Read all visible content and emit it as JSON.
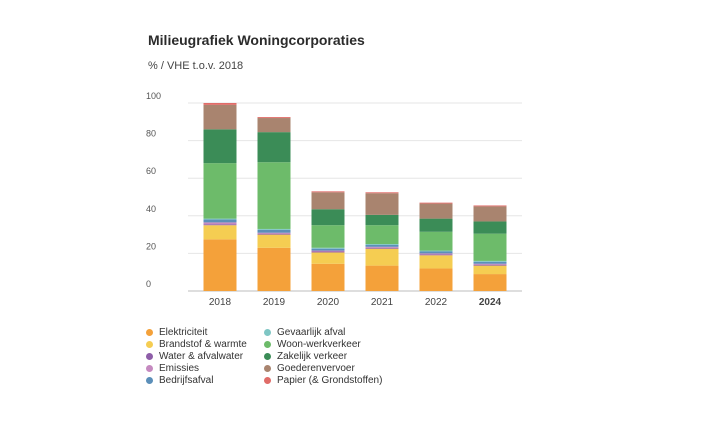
{
  "chart_data": {
    "type": "bar",
    "stacked": true,
    "title": "Milieugrafiek Woningcorporaties",
    "subtitle": "% / VHE t.o.v. 2018",
    "categories": [
      "2018",
      "2019",
      "2020",
      "2021",
      "2022",
      "2024"
    ],
    "highlighted_category": "2024",
    "ylim": [
      0,
      100
    ],
    "yticks": [
      0,
      20,
      40,
      60,
      80,
      100
    ],
    "grid": true,
    "legend_position": "bottom",
    "series": [
      {
        "name": "Elektriciteit",
        "color": "#f4a13a",
        "values": [
          27.5,
          23,
          14.5,
          13.5,
          12,
          9
        ]
      },
      {
        "name": "Brandstof & warmte",
        "color": "#f5cd52",
        "values": [
          7.5,
          7,
          6,
          9,
          7,
          4.5
        ]
      },
      {
        "name": "Water & afvalwater",
        "color": "#8e5ea8",
        "values": [
          0.5,
          0.5,
          0.5,
          0.5,
          0.5,
          0.5
        ]
      },
      {
        "name": "Emissies",
        "color": "#c58ac0",
        "values": [
          1,
          0.5,
          0.5,
          0.5,
          0.5,
          0.5
        ]
      },
      {
        "name": "Bedrijfsafval",
        "color": "#5b8fb9",
        "values": [
          1.5,
          1.5,
          1,
          1,
          1,
          1
        ]
      },
      {
        "name": "Gevaarlijk afval",
        "color": "#7fc6c4",
        "values": [
          0.5,
          0.5,
          0.5,
          0.5,
          0.5,
          0.5
        ]
      },
      {
        "name": "Woon-werkverkeer",
        "color": "#6dbb6a",
        "values": [
          29.5,
          35.5,
          12,
          10,
          10,
          14.5
        ]
      },
      {
        "name": "Zakelijk verkeer",
        "color": "#3b8c57",
        "values": [
          18,
          16,
          8.5,
          5.5,
          7,
          6.5
        ]
      },
      {
        "name": "Goederenvervoer",
        "color": "#a9846f",
        "values": [
          13,
          7.5,
          9,
          11.5,
          8,
          8
        ]
      },
      {
        "name": "Papier (& Grondstoffen)",
        "color": "#e06c68",
        "values": [
          1,
          0.5,
          0.5,
          0.5,
          0.5,
          0.5
        ]
      }
    ]
  }
}
